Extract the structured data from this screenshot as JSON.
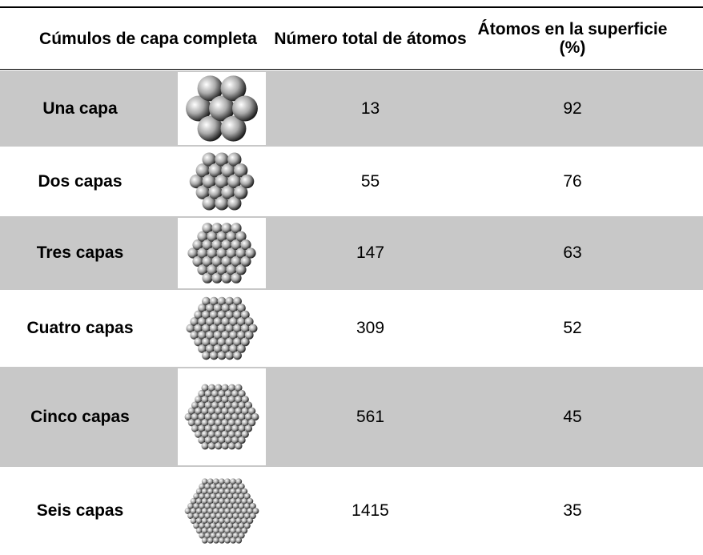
{
  "table": {
    "header": [
      "Cúmulos de capa completa",
      "Número total de átomos",
      "Átomos en la superficie (%)"
    ],
    "rows": [
      [
        "Una capa",
        13,
        92
      ],
      [
        "Dos capas",
        55,
        76
      ],
      [
        "Tres capas",
        147,
        63
      ],
      [
        "Cuatro capas",
        309,
        52
      ],
      [
        "Cinco capas",
        561,
        45
      ],
      [
        "Seis capas",
        1415,
        35
      ]
    ]
  }
}
